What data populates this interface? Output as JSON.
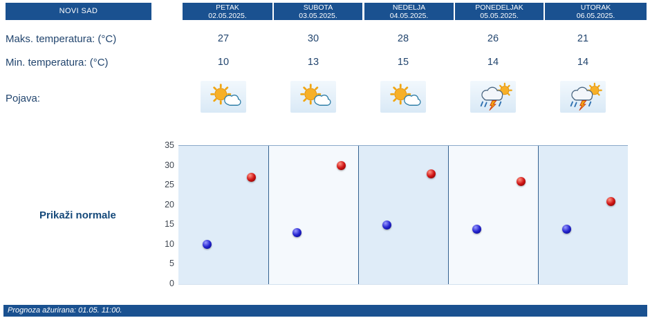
{
  "header": {
    "station": "NOVI SAD",
    "days": [
      {
        "name": "PETAK",
        "date": "02.05.2025."
      },
      {
        "name": "SUBOTA",
        "date": "03.05.2025."
      },
      {
        "name": "NEDELJA",
        "date": "04.05.2025."
      },
      {
        "name": "PONEDELJAK",
        "date": "05.05.2025."
      },
      {
        "name": "UTORAK",
        "date": "06.05.2025."
      }
    ]
  },
  "rows": {
    "max_label": "Maks. temperatura: (°C)",
    "min_label": "Min. temperatura: (°C)",
    "pojava_label": "Pojava:",
    "max_values": [
      27,
      30,
      28,
      26,
      21
    ],
    "min_values": [
      10,
      13,
      15,
      14,
      14
    ],
    "icons": [
      "sun-cloud",
      "sun-cloud",
      "sun-cloud",
      "storm",
      "storm"
    ]
  },
  "controls": {
    "show_normals_label": "Prikaži normale"
  },
  "footer": {
    "updated_text": "Prognoza ažurirana:  01.05. 11:00."
  },
  "chart_data": {
    "type": "scatter",
    "categories": [
      "PETAK",
      "SUBOTA",
      "NEDELJA",
      "PONEDELJAK",
      "UTORAK"
    ],
    "series": [
      {
        "name": "Min. temperatura (°C)",
        "color": "#2525d0",
        "values": [
          10,
          13,
          15,
          14,
          14
        ]
      },
      {
        "name": "Maks. temperatura (°C)",
        "color": "#d01515",
        "values": [
          27,
          30,
          28,
          26,
          21
        ]
      }
    ],
    "ylim": [
      0,
      35
    ],
    "yticks": [
      0,
      5,
      10,
      15,
      20,
      25,
      30,
      35
    ],
    "title": "",
    "xlabel": "",
    "ylabel": "",
    "grid": false,
    "legend": "none"
  },
  "colors": {
    "header_bg": "#1a5190",
    "band_even": "#dfecf8",
    "band_odd": "#f5f9fd",
    "separator": "#33608f",
    "text": "#22456e",
    "min_dot": "#2525d0",
    "max_dot": "#d01515"
  }
}
